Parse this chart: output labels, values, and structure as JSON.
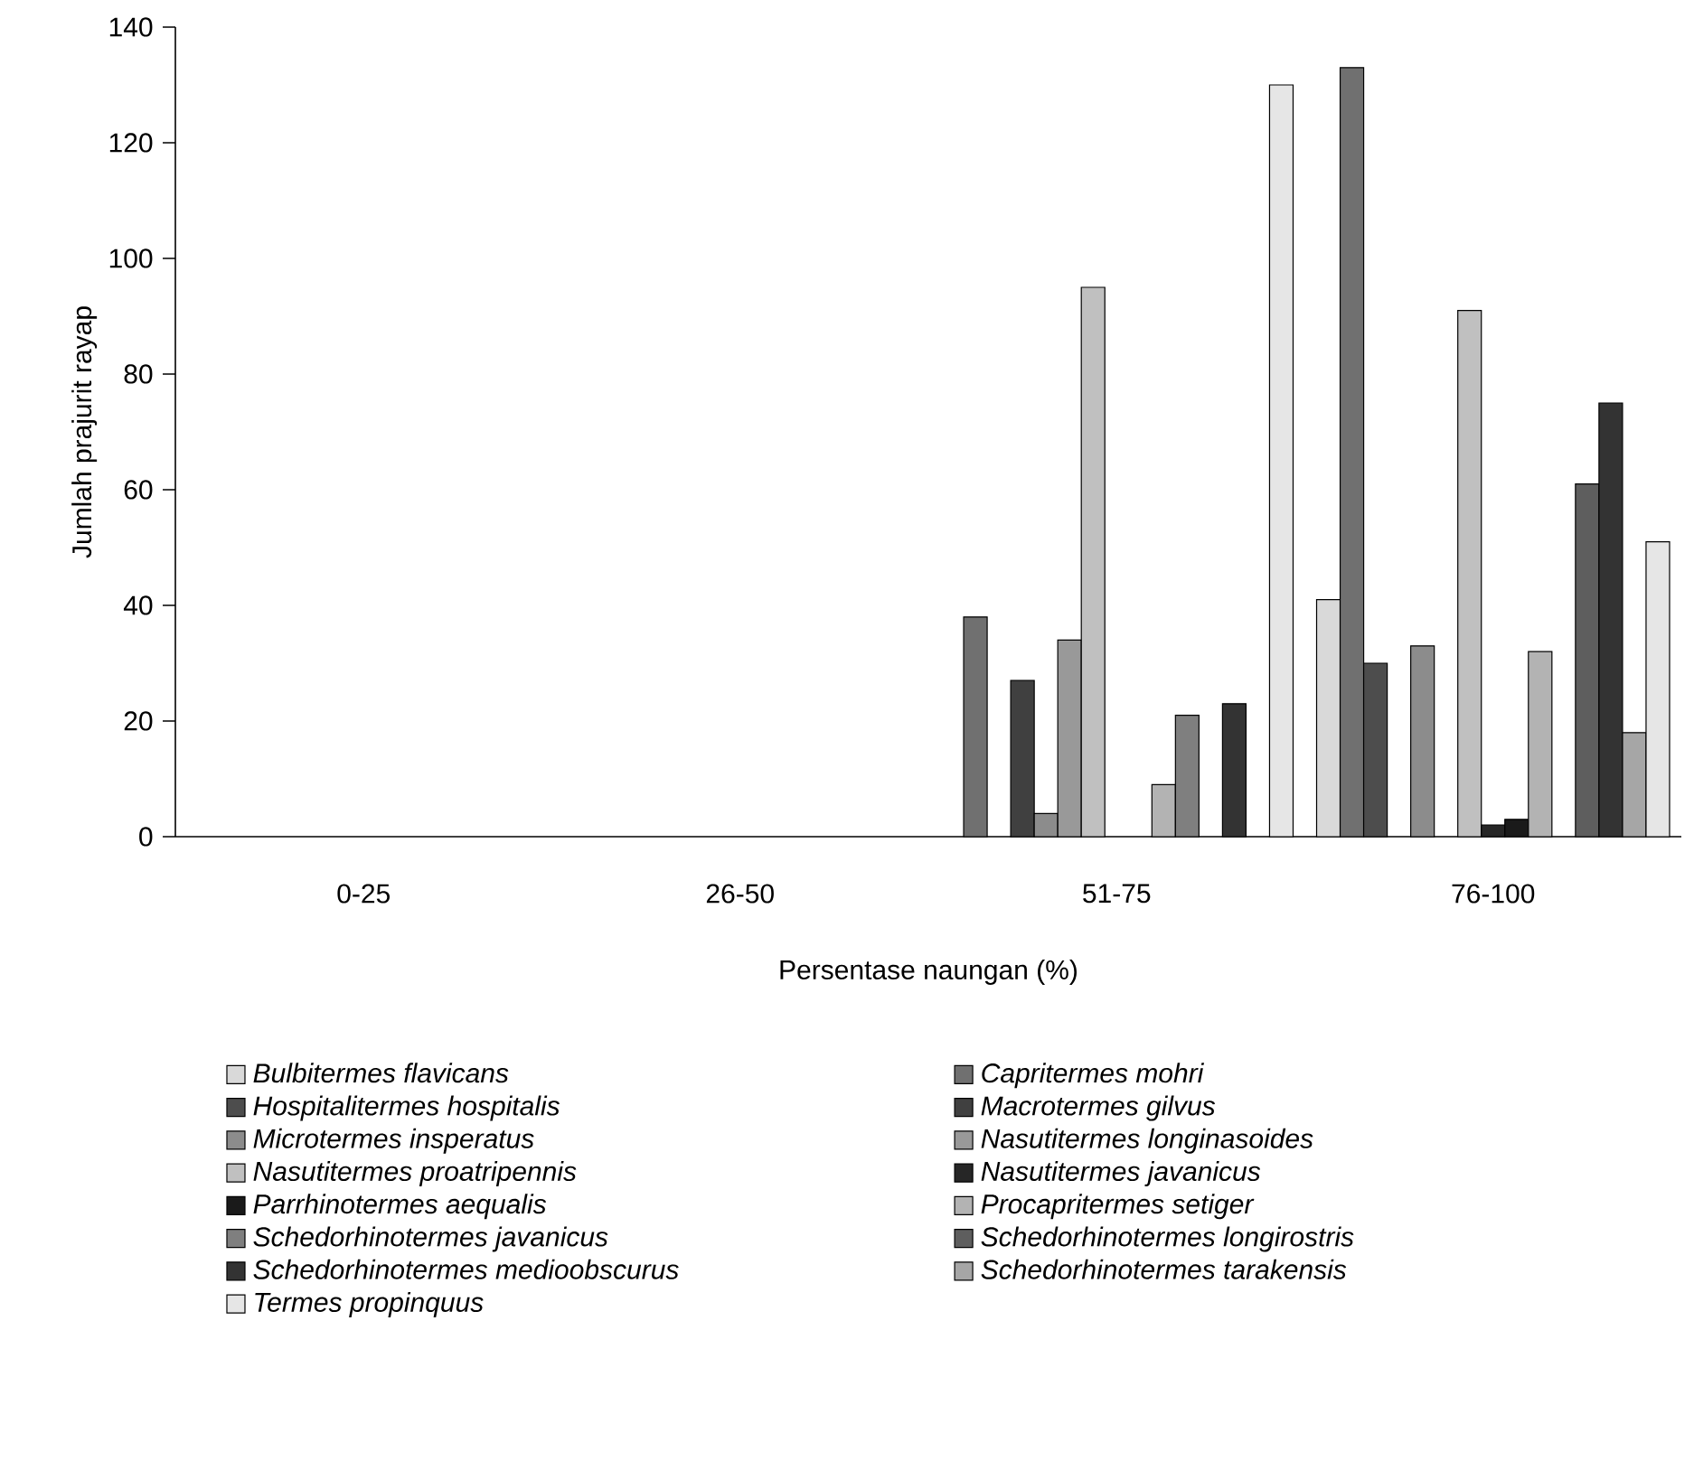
{
  "chart_data": {
    "type": "bar",
    "xlabel": "Persentase naungan (%)",
    "ylabel": "Jumlah prajurit rayap",
    "categories": [
      "0-25",
      "26-50",
      "51-75",
      "76-100"
    ],
    "ylim": [
      0,
      140
    ],
    "yticks": [
      0,
      20,
      40,
      60,
      80,
      100,
      120,
      140
    ],
    "legend": "bottom",
    "series": [
      {
        "name": "Bulbitermes flavicans",
        "color": "#d9d9d9",
        "values": [
          0,
          0,
          0,
          41
        ]
      },
      {
        "name": "Capritermes mohri",
        "color": "#707070",
        "values": [
          0,
          0,
          38,
          133
        ]
      },
      {
        "name": "Hospitalitermes hospitalis",
        "color": "#4d4d4d",
        "values": [
          0,
          0,
          0,
          30
        ]
      },
      {
        "name": "Macrotermes gilvus",
        "color": "#404040",
        "values": [
          0,
          0,
          27,
          0
        ]
      },
      {
        "name": "Microtermes insperatus",
        "color": "#8c8c8c",
        "values": [
          0,
          0,
          4,
          33
        ]
      },
      {
        "name": "Nasutitermes longinasoides",
        "color": "#999999",
        "values": [
          0,
          0,
          34,
          0
        ]
      },
      {
        "name": "Nasutitermes proatripennis",
        "color": "#c0c0c0",
        "values": [
          0,
          0,
          95,
          91
        ]
      },
      {
        "name": "Nasutitermes javanicus",
        "color": "#262626",
        "values": [
          0,
          0,
          0,
          2
        ]
      },
      {
        "name": "Parrhinotermes aequalis",
        "color": "#1a1a1a",
        "values": [
          0,
          0,
          0,
          3
        ]
      },
      {
        "name": "Procapritermes setiger",
        "color": "#b3b3b3",
        "values": [
          0,
          0,
          9,
          32
        ]
      },
      {
        "name": "Schedorhinotermes javanicus",
        "color": "#7f7f7f",
        "values": [
          0,
          0,
          21,
          0
        ]
      },
      {
        "name": "Schedorhinotermes longirostris",
        "color": "#5e5e5e",
        "values": [
          0,
          0,
          0,
          61
        ]
      },
      {
        "name": "Schedorhinotermes medioobscurus",
        "color": "#333333",
        "values": [
          0,
          0,
          23,
          75
        ]
      },
      {
        "name": "Schedorhinotermes tarakensis",
        "color": "#a6a6a6",
        "values": [
          0,
          0,
          0,
          18
        ]
      },
      {
        "name": "Termes propinquus",
        "color": "#e6e6e6",
        "values": [
          0,
          0,
          130,
          51
        ]
      }
    ]
  }
}
